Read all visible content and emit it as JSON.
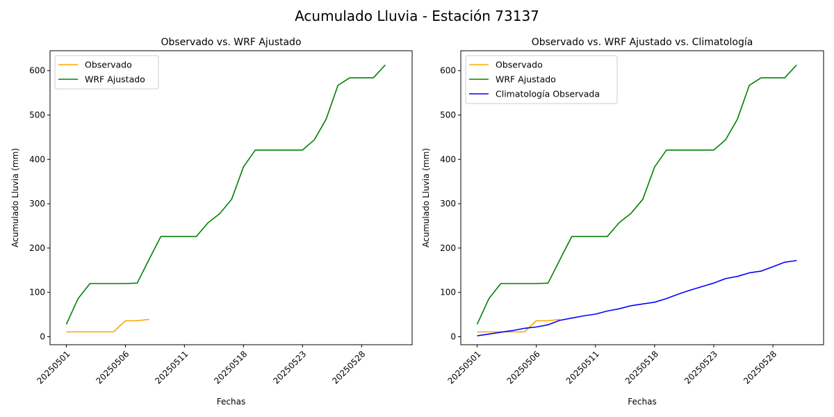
{
  "figure": {
    "title": "Acumulado Lluvia - Estación 73137"
  },
  "chart_data": [
    {
      "type": "line",
      "title": "Observado vs. WRF Ajustado",
      "xlabel": "Fechas",
      "ylabel": "Acumulado Lluvia (mm)",
      "x_tick_labels": [
        "20250501",
        "20250506",
        "20250511",
        "20250518",
        "20250523",
        "20250528"
      ],
      "y_ticks": [
        0,
        100,
        200,
        300,
        400,
        500,
        600
      ],
      "ylim": [
        -18,
        645
      ],
      "legend_position": "top-left",
      "grid": false,
      "series": [
        {
          "name": "Observado",
          "color": "#ffa500",
          "values": [
            11,
            11,
            11,
            11,
            11,
            36,
            36,
            39
          ]
        },
        {
          "name": "WRF Ajustado",
          "color": "#008000",
          "values": [
            28,
            86,
            120,
            120,
            120,
            120,
            121,
            174,
            226,
            226,
            226,
            226,
            257,
            278,
            310,
            383,
            421,
            421,
            421,
            421,
            421,
            444,
            491,
            567,
            584,
            584,
            584,
            613
          ]
        }
      ]
    },
    {
      "type": "line",
      "title": "Observado vs. WRF Ajustado vs. Climatología",
      "xlabel": "Fechas",
      "ylabel": "Acumulado Lluvia (mm)",
      "x_tick_labels": [
        "20250501",
        "20250506",
        "20250511",
        "20250518",
        "20250523",
        "20250528"
      ],
      "y_ticks": [
        0,
        100,
        200,
        300,
        400,
        500,
        600
      ],
      "ylim": [
        -18,
        645
      ],
      "legend_position": "top-left",
      "grid": false,
      "series": [
        {
          "name": "Observado",
          "color": "#ffa500",
          "values": [
            11,
            11,
            11,
            11,
            11,
            36,
            36,
            39
          ]
        },
        {
          "name": "WRF Ajustado",
          "color": "#008000",
          "values": [
            28,
            86,
            120,
            120,
            120,
            120,
            121,
            174,
            226,
            226,
            226,
            226,
            257,
            278,
            310,
            383,
            421,
            421,
            421,
            421,
            421,
            444,
            491,
            567,
            584,
            584,
            584,
            613
          ]
        },
        {
          "name": "Climatología Observada",
          "color": "#0000ff",
          "values": [
            2,
            6,
            10,
            14,
            19,
            22,
            27,
            37,
            42,
            47,
            51,
            58,
            63,
            70,
            74,
            78,
            86,
            96,
            105,
            113,
            121,
            131,
            136,
            144,
            148,
            158,
            168,
            172
          ]
        }
      ]
    }
  ]
}
